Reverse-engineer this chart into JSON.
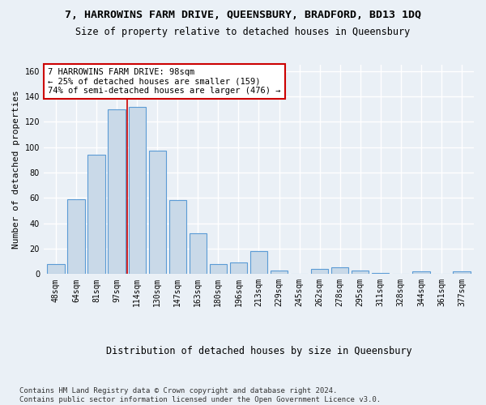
{
  "title": "7, HARROWINS FARM DRIVE, QUEENSBURY, BRADFORD, BD13 1DQ",
  "subtitle": "Size of property relative to detached houses in Queensbury",
  "xlabel": "Distribution of detached houses by size in Queensbury",
  "ylabel": "Number of detached properties",
  "bar_color": "#c9d9e8",
  "bar_edge_color": "#5b9bd5",
  "categories": [
    "48sqm",
    "64sqm",
    "81sqm",
    "97sqm",
    "114sqm",
    "130sqm",
    "147sqm",
    "163sqm",
    "180sqm",
    "196sqm",
    "213sqm",
    "229sqm",
    "245sqm",
    "262sqm",
    "278sqm",
    "295sqm",
    "311sqm",
    "328sqm",
    "344sqm",
    "361sqm",
    "377sqm"
  ],
  "values": [
    8,
    59,
    94,
    130,
    132,
    97,
    58,
    32,
    8,
    9,
    18,
    3,
    0,
    4,
    5,
    3,
    1,
    0,
    2,
    0,
    2
  ],
  "ylim": [
    0,
    165
  ],
  "yticks": [
    0,
    20,
    40,
    60,
    80,
    100,
    120,
    140,
    160
  ],
  "property_line_index": 3,
  "property_line_color": "#cc0000",
  "annotation_text": "7 HARROWINS FARM DRIVE: 98sqm\n← 25% of detached houses are smaller (159)\n74% of semi-detached houses are larger (476) →",
  "annotation_box_color": "#ffffff",
  "annotation_box_edge": "#cc0000",
  "footnote": "Contains HM Land Registry data © Crown copyright and database right 2024.\nContains public sector information licensed under the Open Government Licence v3.0.",
  "background_color": "#eaf0f6",
  "grid_color": "#ffffff",
  "title_fontsize": 9.5,
  "subtitle_fontsize": 8.5,
  "annotation_fontsize": 7.5,
  "ylabel_fontsize": 8,
  "xlabel_fontsize": 8.5,
  "tick_fontsize": 7,
  "footnote_fontsize": 6.5
}
